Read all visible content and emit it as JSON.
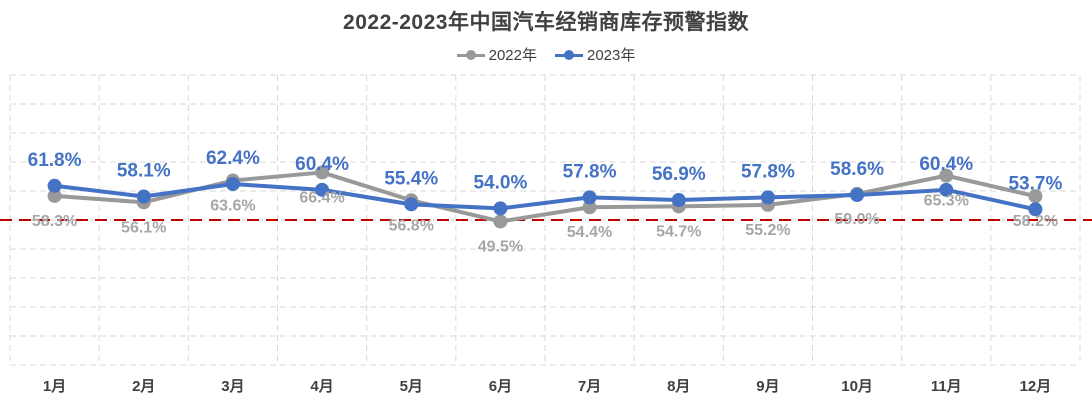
{
  "chart_data": {
    "type": "line",
    "title": "2022-2023年中国汽车经销商库存预警指数",
    "categories": [
      "1月",
      "2月",
      "3月",
      "4月",
      "5月",
      "6月",
      "7月",
      "8月",
      "9月",
      "10月",
      "11月",
      "12月"
    ],
    "series": [
      {
        "name": "2022年",
        "color": "#999999",
        "values": [
          58.3,
          56.1,
          63.6,
          66.4,
          56.8,
          49.5,
          54.4,
          54.7,
          55.2,
          59.0,
          65.3,
          58.2
        ],
        "labels": [
          "58.3%",
          "56.1%",
          "63.6%",
          "66.4%",
          "56.8%",
          "49.5%",
          "54.4%",
          "54.7%",
          "55.2%",
          "59.0%",
          "65.3%",
          "58.2%"
        ]
      },
      {
        "name": "2023年",
        "color": "#4472C4",
        "values": [
          61.8,
          58.1,
          62.4,
          60.4,
          55.4,
          54.0,
          57.8,
          56.9,
          57.8,
          58.6,
          60.4,
          53.7
        ],
        "labels": [
          "61.8%",
          "58.1%",
          "62.4%",
          "60.4%",
          "55.4%",
          "54.0%",
          "57.8%",
          "56.9%",
          "57.8%",
          "58.6%",
          "60.4%",
          "53.7%"
        ]
      }
    ],
    "reference_line": {
      "value": 50,
      "color": "#C00000",
      "style": "dashed"
    },
    "ylim": [
      0,
      100
    ],
    "grid": true,
    "legend_position": "top"
  }
}
